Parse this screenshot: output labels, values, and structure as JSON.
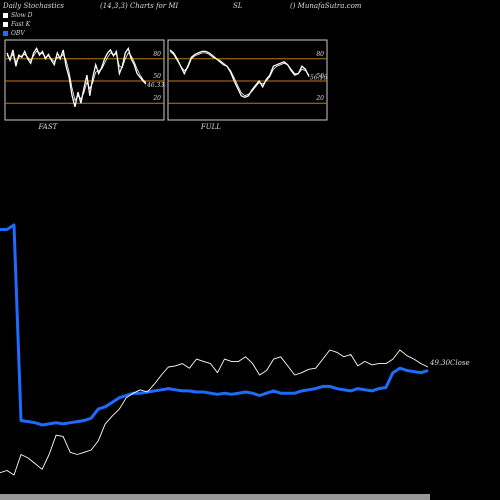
{
  "header": {
    "title": "Daily Stochastics",
    "params": "(14,3,3) Charts for MI",
    "ticker": "SL",
    "source": "() MunafaSutra.com"
  },
  "legend": [
    {
      "label": "Slow  D",
      "color": "#ffffff"
    },
    {
      "label": "Fast K",
      "color": "#ffffff"
    },
    {
      "label": "OBV",
      "color": "#1e6cff"
    }
  ],
  "colors": {
    "obv": "#1e6cff",
    "price": "#ffffff",
    "level": "#b87a16",
    "background": "#000000"
  },
  "chart_data": [
    {
      "type": "line",
      "name": "FAST",
      "caption": "FAST",
      "ylim": [
        0,
        100
      ],
      "levels": [
        20,
        50,
        80
      ],
      "level_labels": [
        "80",
        "50",
        "20"
      ],
      "last_value_label": "46.33",
      "series": [
        {
          "values": [
            88,
            78,
            92,
            70,
            85,
            82,
            90,
            80,
            74,
            88,
            94,
            85,
            90,
            80,
            86,
            78,
            72,
            88,
            80,
            92,
            70,
            55,
            30,
            15,
            35,
            20,
            40,
            58,
            30,
            55,
            72,
            60,
            68,
            80,
            88,
            92,
            84,
            90,
            60,
            70,
            88,
            94,
            80,
            72,
            60,
            55,
            50,
            46
          ]
        },
        {
          "values": [
            85,
            80,
            86,
            76,
            82,
            84,
            86,
            82,
            78,
            84,
            90,
            88,
            87,
            82,
            84,
            80,
            76,
            82,
            82,
            86,
            78,
            62,
            40,
            24,
            30,
            26,
            34,
            48,
            40,
            48,
            62,
            64,
            66,
            74,
            82,
            88,
            86,
            86,
            70,
            68,
            80,
            88,
            84,
            76,
            66,
            58,
            52,
            48
          ]
        }
      ]
    },
    {
      "type": "line",
      "name": "FULL",
      "caption": "FULL",
      "ylim": [
        0,
        100
      ],
      "levels": [
        20,
        50,
        80
      ],
      "level_labels": [
        "80",
        "50",
        "20"
      ],
      "last_value_label": "56.16",
      "series": [
        {
          "values": [
            92,
            88,
            80,
            70,
            60,
            70,
            82,
            86,
            88,
            90,
            90,
            88,
            84,
            80,
            76,
            72,
            70,
            62,
            50,
            40,
            30,
            28,
            30,
            38,
            44,
            50,
            42,
            52,
            58,
            70,
            72,
            74,
            76,
            72,
            64,
            58,
            60,
            70,
            66,
            56
          ]
        },
        {
          "values": [
            90,
            86,
            78,
            70,
            64,
            68,
            80,
            84,
            86,
            88,
            88,
            86,
            82,
            80,
            78,
            74,
            70,
            64,
            54,
            44,
            34,
            30,
            32,
            36,
            42,
            48,
            46,
            50,
            56,
            66,
            70,
            72,
            74,
            72,
            66,
            60,
            60,
            66,
            64,
            58
          ]
        }
      ]
    },
    {
      "type": "line",
      "name": "OBV and price",
      "close_label": "49.30Close",
      "series": [
        {
          "name": "OBV",
          "values": [
            226,
            226,
            230,
            58,
            57,
            56,
            54,
            55,
            56,
            55,
            56,
            57,
            58,
            60,
            68,
            70,
            74,
            78,
            80,
            82,
            82,
            83,
            84,
            85,
            86,
            85,
            84,
            84,
            83,
            83,
            82,
            81,
            82,
            81,
            82,
            83,
            82,
            80,
            82,
            84,
            82,
            82,
            82,
            84,
            85,
            86,
            88,
            88,
            86,
            85,
            84,
            86,
            85,
            84,
            86,
            87,
            100,
            104,
            102,
            101,
            100,
            102
          ]
        },
        {
          "name": "Price",
          "values": [
            12,
            14,
            10,
            28,
            25,
            20,
            15,
            28,
            45,
            44,
            30,
            28,
            30,
            32,
            40,
            55,
            62,
            68,
            78,
            82,
            85,
            83,
            90,
            98,
            105,
            106,
            108,
            104,
            112,
            110,
            108,
            100,
            112,
            110,
            110,
            114,
            108,
            98,
            102,
            112,
            114,
            106,
            98,
            100,
            103,
            104,
            112,
            120,
            118,
            114,
            116,
            106,
            110,
            107,
            108,
            108,
            112,
            120,
            115,
            112,
            108,
            105
          ]
        }
      ]
    }
  ]
}
